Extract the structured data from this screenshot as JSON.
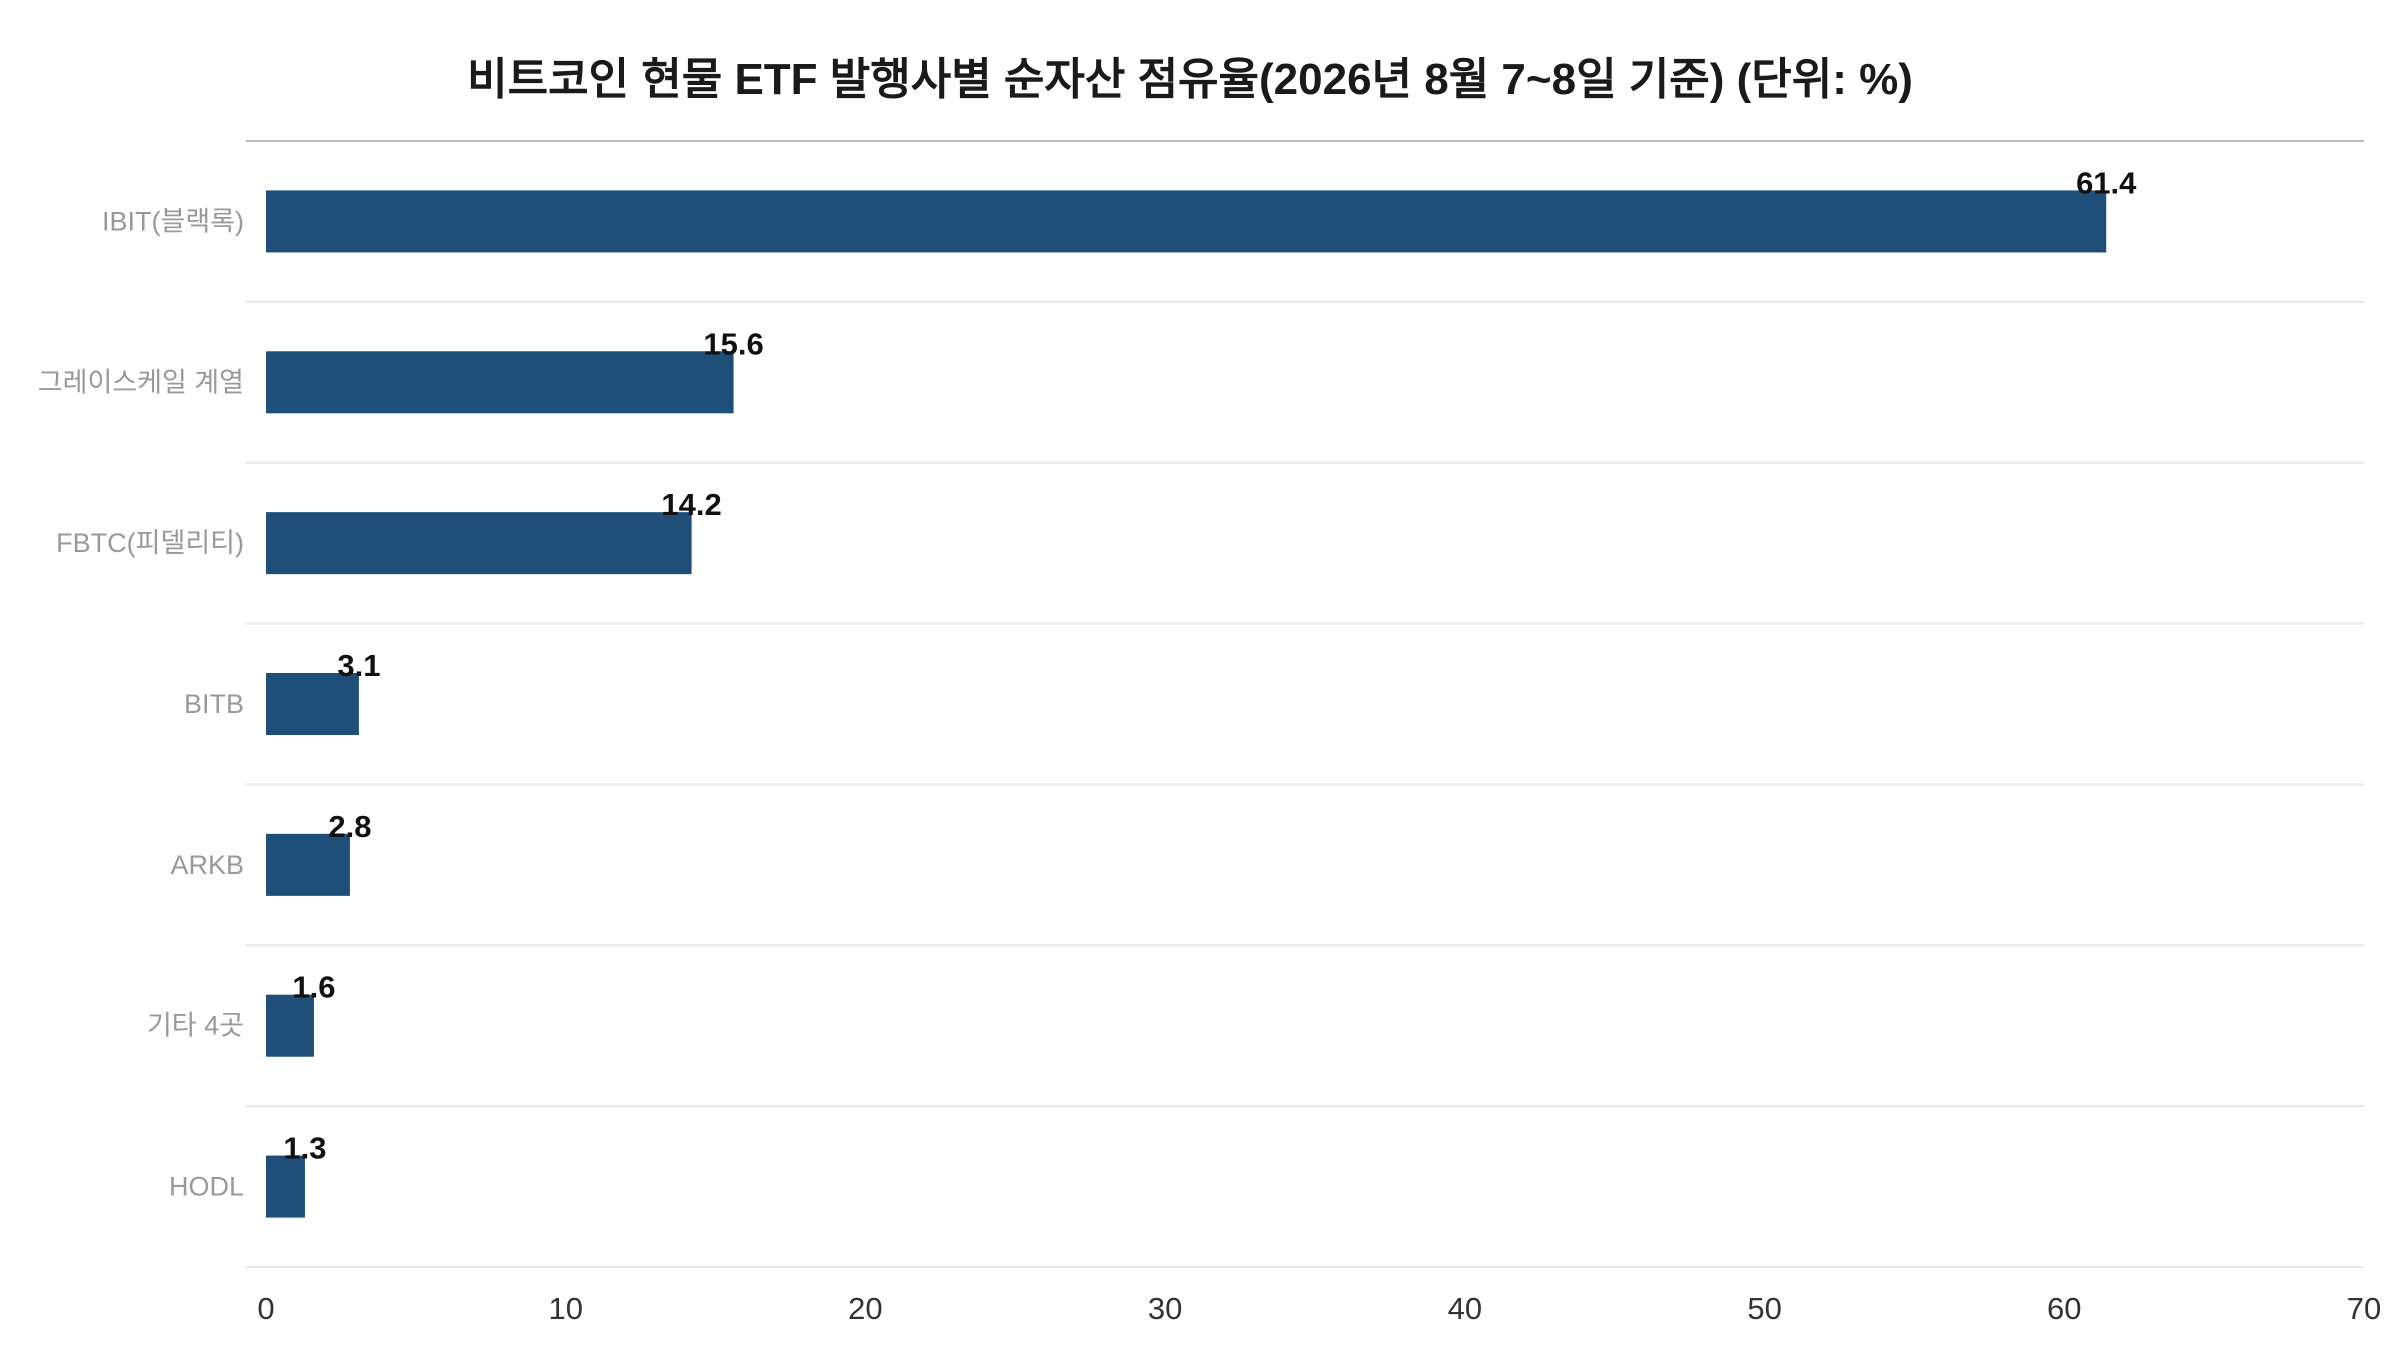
{
  "chart_data": {
    "type": "bar",
    "orientation": "horizontal",
    "title": "비트코인 현물 ETF 발행사별 순자산 점유율(2026년 8월 7~8일 기준) (단위: %)",
    "xlabel": "",
    "ylabel": "",
    "categories": [
      "IBIT(블랙록)",
      "그레이스케일 계열",
      "FBTC(피델리티)",
      "BITB",
      "ARKB",
      "기타 4곳",
      "HODL"
    ],
    "values": [
      61.4,
      15.6,
      14.2,
      3.1,
      2.8,
      1.6,
      1.3
    ],
    "xlim": [
      0,
      70
    ],
    "xticks": [
      0,
      10,
      20,
      30,
      40,
      50,
      60,
      70
    ],
    "grid": "horizontal separators between categories",
    "legend": "none",
    "bar_color": "#1f4e79"
  }
}
